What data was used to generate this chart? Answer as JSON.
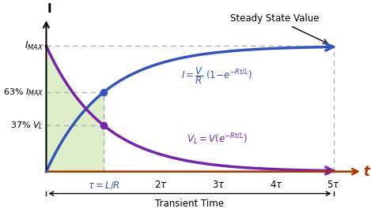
{
  "bg_color": "#ffffff",
  "curve_I_color": "#3355bb",
  "curve_V_color": "#7722aa",
  "shade_color": "#ddeec8",
  "dashed_color": "#aaaaaa",
  "dot_color_I": "#3355bb",
  "dot_color_V": "#7722aa",
  "imax": 1.0,
  "tau": 1.0,
  "t_max": 5.0,
  "t_axis_color": "#aa3300",
  "y_axis_color": "#000000",
  "steady_state_label": "Steady State Value",
  "imax_label": "$I_{MAX}$",
  "pct63_label": "63% $I_{MAX}$",
  "pct37_label": "37% $V_L$",
  "tau_label": "$\\tau = L/R$",
  "transient_label": "Transient Time",
  "eq_I_label": "$I = \\dfrac{V}{R}\\ (1{-}e^{-Rt/L})$",
  "eq_V_label": "$V_L = V(e^{-Rt/L})$",
  "tick_positions": [
    1,
    2,
    3,
    4,
    5
  ],
  "tick_labels": [
    "",
    "2$\\tau$",
    "3$\\tau$",
    "4$\\tau$",
    "5$\\tau$"
  ]
}
